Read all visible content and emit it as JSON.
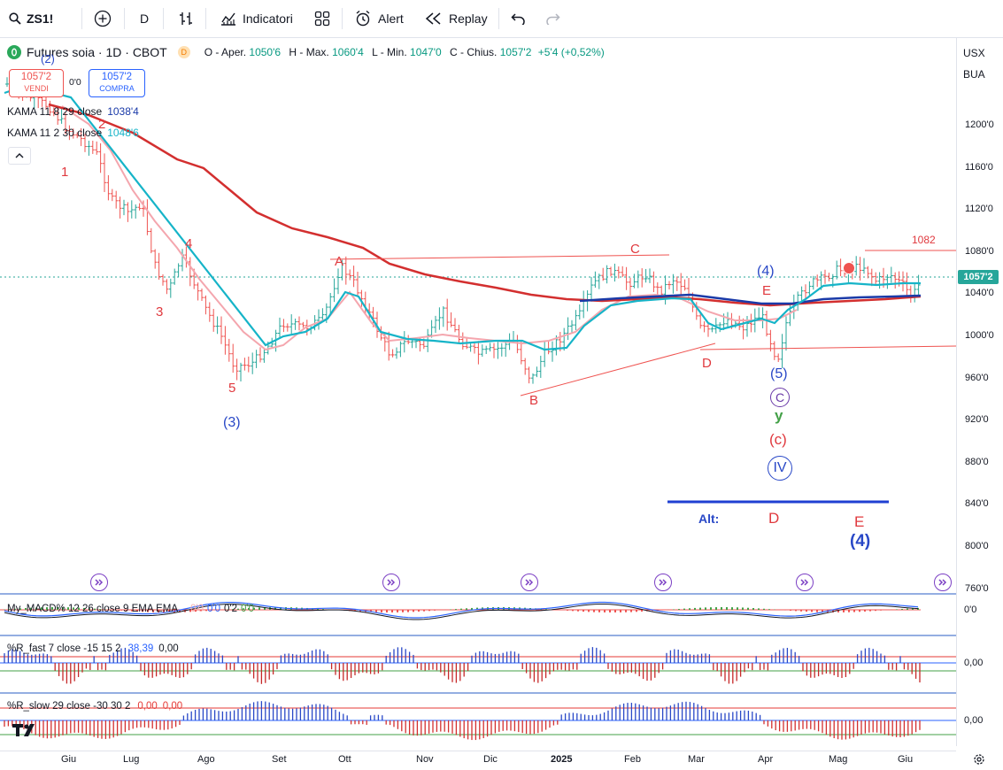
{
  "toolbar": {
    "symbol": "ZS1!",
    "interval": "D",
    "indicators_label": "Indicatori",
    "alert_label": "Alert",
    "replay_label": "Replay"
  },
  "header": {
    "title": "Futures soia · 1D · CBOT",
    "badge": "D",
    "ohlc": {
      "o_label": "O - Aper.",
      "o": "1050'6",
      "h_label": "H - Max.",
      "h": "1060'4",
      "l_label": "L - Min.",
      "l": "1047'0",
      "c_label": "C - Chius.",
      "c": "1057'2",
      "chg": "+5'4 (+0,52%)"
    }
  },
  "trade": {
    "sell_price": "1057'2",
    "sell_label": "VENDI",
    "spread": "0'0",
    "buy_price": "1057'2",
    "buy_label": "COMPRA"
  },
  "indicators": {
    "kama1_label": "KAMA 11 8 29 close",
    "kama1_value": "1038'4",
    "kama2_label": "KAMA 11 2 30 close",
    "kama2_value": "1048'6"
  },
  "scale": {
    "currency": "USX",
    "unit": "BUA",
    "price_ticks": [
      "1200'0",
      "1160'0",
      "1120'0",
      "1080'0",
      "1040'0",
      "1000'0",
      "960'0",
      "920'0",
      "880'0",
      "840'0",
      "800'0",
      "760'0"
    ],
    "last_price": "1057'2"
  },
  "waves": {
    "w1": "1",
    "w2": "2",
    "w3": "3",
    "w4": "4",
    "w5": "5",
    "big3": "(3)",
    "top2": "(2)",
    "A": "A",
    "B": "B",
    "C": "C",
    "D": "D",
    "E": "E",
    "c4": "(4)",
    "c5": "(5)",
    "circC": "C",
    "y": "y",
    "cc": "(c)",
    "IV": "IV",
    "level1082": "1082",
    "alt_label": "Alt:",
    "alt_D": "D",
    "alt_E": "E",
    "alt_4": "(4)"
  },
  "panes": {
    "macd_label": "My_MACD% 12 26 close 9 EMA EMA",
    "macd_v1": "0'0",
    "macd_v2": "0'0",
    "macd_v3": "0'2",
    "macd_v4": "0'0",
    "macd_axis": "0'0",
    "rfast_label": "%R_fast 7 close -15 15 2",
    "rfast_v1": "38,39",
    "rfast_v2": "0,00",
    "rfast_axis": "0,00",
    "rslow_label": "%R_slow 29 close -30 30 2",
    "rslow_v1": "0,00",
    "rslow_v2": "0,00",
    "rslow_axis": "0,00"
  },
  "time_axis": [
    "Giu",
    "Lug",
    "Ago",
    "Set",
    "Ott",
    "Nov",
    "Dic",
    "2025",
    "Feb",
    "Mar",
    "Apr",
    "Mag",
    "Giu"
  ],
  "colors": {
    "up": "#26a69a",
    "down": "#ef5350",
    "kama_slow": "#d32f2f",
    "kama_fast": "#16b4c8",
    "ema_pink": "#f4a6ae",
    "kama_blue": "#1a3aa8",
    "wave_red": "#e0393e",
    "wave_blue": "#2948c7"
  }
}
